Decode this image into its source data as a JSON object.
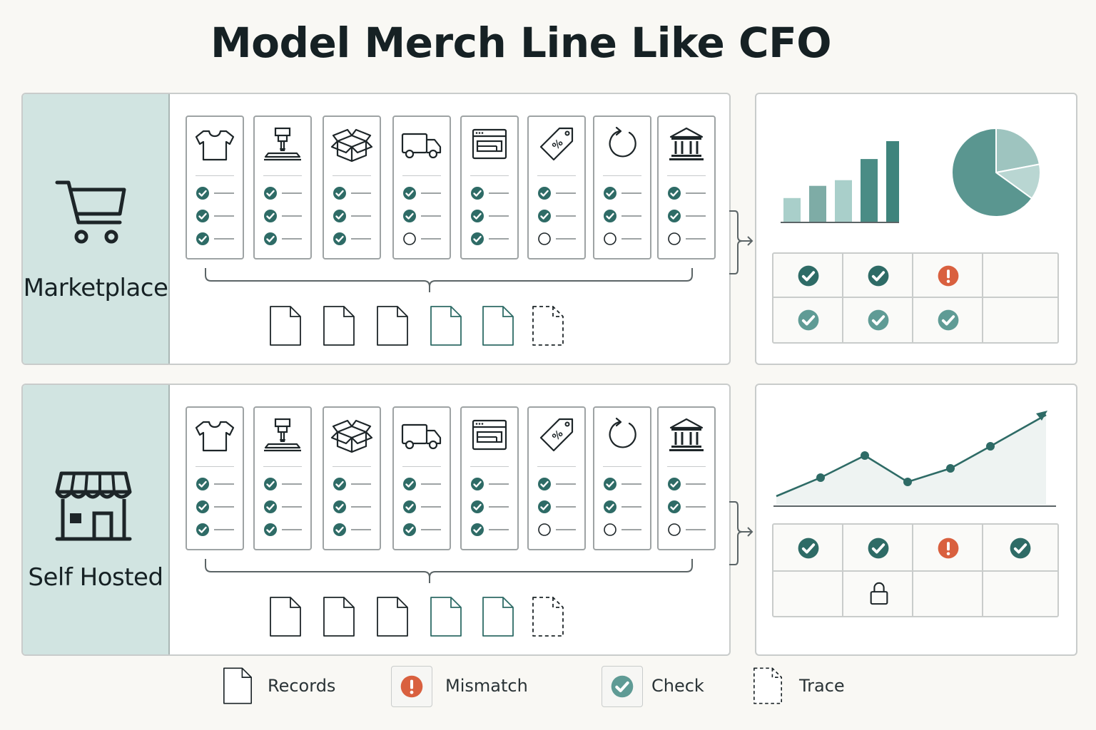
{
  "title": "Model Merch Line Like CFO",
  "rows": [
    {
      "label": "Marketplace",
      "icon": "shopping-cart-icon",
      "cards": [
        {
          "icon": "tshirt-icon",
          "checks": [
            true,
            true,
            true
          ]
        },
        {
          "icon": "printer-press-icon",
          "checks": [
            true,
            true,
            true
          ]
        },
        {
          "icon": "open-box-icon",
          "checks": [
            true,
            true,
            true
          ]
        },
        {
          "icon": "delivery-truck-icon",
          "checks": [
            true,
            true,
            false
          ]
        },
        {
          "icon": "browser-window-icon",
          "checks": [
            true,
            true,
            true
          ]
        },
        {
          "icon": "price-tag-icon",
          "checks": [
            true,
            true,
            false
          ]
        },
        {
          "icon": "refresh-icon",
          "checks": [
            true,
            true,
            false
          ]
        },
        {
          "icon": "bank-icon",
          "checks": [
            true,
            true,
            false
          ]
        }
      ],
      "documents": [
        "plain",
        "plain",
        "plain",
        "teal",
        "teal",
        "dashed"
      ],
      "analytics": {
        "type": "bar-and-pie",
        "bars": [
          0.3,
          0.45,
          0.52,
          0.78,
          1.0
        ],
        "bar_colors": [
          "#a9cfca",
          "#7eaca6",
          "#a9cfca",
          "#4a8c85",
          "#3f847c"
        ],
        "pie_slices": [
          0.65,
          0.22,
          0.13
        ],
        "pie_colors": [
          "#5a9690",
          "#9ec4bf",
          "#b9d6d2"
        ],
        "grid": [
          [
            "check",
            "check",
            "mismatch",
            ""
          ],
          [
            "check-light",
            "check-light",
            "check-light",
            ""
          ]
        ]
      }
    },
    {
      "label": "Self Hosted",
      "icon": "storefront-icon",
      "cards": [
        {
          "icon": "tshirt-icon",
          "checks": [
            true,
            true,
            true
          ]
        },
        {
          "icon": "printer-press-icon",
          "checks": [
            true,
            true,
            true
          ]
        },
        {
          "icon": "open-box-icon",
          "checks": [
            true,
            true,
            true
          ]
        },
        {
          "icon": "delivery-truck-icon",
          "checks": [
            true,
            true,
            true
          ]
        },
        {
          "icon": "browser-window-icon",
          "checks": [
            true,
            true,
            true
          ]
        },
        {
          "icon": "price-tag-icon",
          "checks": [
            true,
            true,
            false
          ]
        },
        {
          "icon": "refresh-icon",
          "checks": [
            true,
            true,
            false
          ]
        },
        {
          "icon": "bank-icon",
          "checks": [
            true,
            true,
            false
          ]
        }
      ],
      "documents": [
        "plain",
        "plain",
        "plain",
        "teal",
        "teal",
        "dashed"
      ],
      "analytics": {
        "type": "line",
        "line_values": [
          0.1,
          0.42,
          0.7,
          0.32,
          0.52,
          0.82,
          1.2
        ],
        "grid": [
          [
            "check",
            "check",
            "mismatch",
            "check"
          ],
          [
            "",
            "lock",
            "",
            ""
          ]
        ]
      }
    }
  ],
  "legend": [
    {
      "icon": "document-icon",
      "label": "Records"
    },
    {
      "icon": "mismatch-icon",
      "label": "Mismatch"
    },
    {
      "icon": "check-icon",
      "label": "Check"
    },
    {
      "icon": "dashed-document-icon",
      "label": "Trace"
    }
  ],
  "colors": {
    "teal": "#2e6b66",
    "teal_light": "#5f9b95",
    "mismatch": "#d9603f",
    "panel_label_bg": "#d1e4e1"
  }
}
